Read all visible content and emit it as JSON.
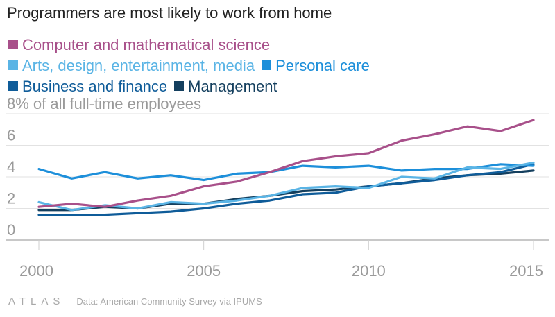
{
  "chart_data": {
    "type": "line",
    "title": "Programmers are most likely to work from home",
    "x": [
      2000,
      2001,
      2002,
      2003,
      2004,
      2005,
      2006,
      2007,
      2008,
      2009,
      2010,
      2011,
      2012,
      2013,
      2014,
      2015
    ],
    "xticks": [
      "2000",
      "2005",
      "2010",
      "2015"
    ],
    "ylim": [
      0,
      8
    ],
    "yticks": [
      "0",
      "2",
      "4",
      "6",
      "8% of all full-time employees"
    ],
    "grid": true,
    "legend_position": "top-left",
    "series": [
      {
        "name": "Computer and mathematical science",
        "color": "#a8508a",
        "values": [
          2.1,
          2.3,
          2.1,
          2.5,
          2.8,
          3.4,
          3.7,
          4.3,
          5.0,
          5.3,
          5.5,
          6.3,
          6.7,
          7.2,
          6.9,
          7.6
        ]
      },
      {
        "name": "Arts, design, entertainment, media",
        "color": "#5ab4e5",
        "values": [
          2.4,
          1.9,
          2.2,
          2.0,
          2.4,
          2.3,
          2.5,
          2.8,
          3.3,
          3.4,
          3.3,
          4.0,
          3.9,
          4.6,
          4.5,
          4.9
        ]
      },
      {
        "name": "Personal care",
        "color": "#1d8fda",
        "values": [
          4.5,
          3.9,
          4.3,
          3.9,
          4.1,
          3.8,
          4.2,
          4.3,
          4.7,
          4.6,
          4.7,
          4.4,
          4.5,
          4.5,
          4.8,
          4.7
        ]
      },
      {
        "name": "Business and finance",
        "color": "#0f5c99",
        "values": [
          1.6,
          1.6,
          1.6,
          1.7,
          1.8,
          2.0,
          2.3,
          2.5,
          2.9,
          3.0,
          3.4,
          3.6,
          3.8,
          4.1,
          4.3,
          4.8
        ]
      },
      {
        "name": "Management",
        "color": "#143f5e",
        "values": [
          1.9,
          1.9,
          2.1,
          2.0,
          2.3,
          2.3,
          2.6,
          2.8,
          3.1,
          3.2,
          3.4,
          3.6,
          3.9,
          4.1,
          4.2,
          4.4
        ]
      }
    ]
  },
  "legend_rows": [
    [
      0
    ],
    [
      1,
      2
    ],
    [
      3,
      4
    ]
  ],
  "footer": {
    "logo": "ATLAS",
    "source": "Data: American Community Survey via IPUMS"
  }
}
